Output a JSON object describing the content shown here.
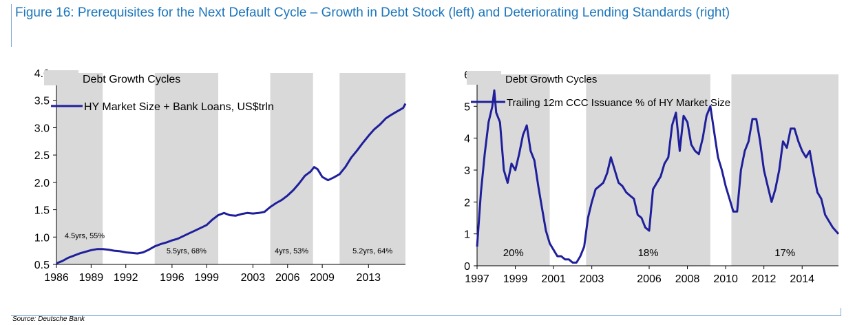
{
  "title": "Figure 16: Prerequisites for the Next Default Cycle – Growth in Debt Stock (left) and Deteriorating Lending Standards (right)",
  "source": "Source: Deutsche Bank",
  "colors": {
    "title": "#1b75bb",
    "line": "#1f1f9c",
    "shade": "#d9d9d9",
    "frame": "#7fa8d6"
  },
  "chart_data": [
    {
      "type": "area",
      "legend": [
        "Debt Growth Cycles",
        "HY Market Size + Bank Loans, US$trln"
      ],
      "legend_position": "top-left",
      "grid": false,
      "xlim": [
        1986,
        2016.2
      ],
      "ylim": [
        0.5,
        4.0
      ],
      "yticks": [
        0.5,
        1.0,
        1.5,
        2.0,
        2.5,
        3.0,
        3.5,
        4.0
      ],
      "ytick_labels": [
        "0.5",
        "1.0",
        "1.5",
        "2.0",
        "2.5",
        "3.0",
        "3.5",
        "4.0"
      ],
      "xticks": [
        1986,
        1989,
        1992,
        1996,
        1999,
        2003,
        2006,
        2009,
        2013
      ],
      "cycles": [
        {
          "start": 1986.0,
          "end": 1990.0,
          "label": "4.5yrs, 55%"
        },
        {
          "start": 1994.5,
          "end": 2000.0,
          "label": "5.5yrs, 68%"
        },
        {
          "start": 2004.5,
          "end": 2008.2,
          "label": "4yrs, 53%"
        },
        {
          "start": 2010.5,
          "end": 2016.2,
          "label": "5.2yrs, 64%"
        }
      ],
      "series": [
        {
          "name": "HY Market Size + Bank Loans, US$trln",
          "x": [
            1986.0,
            1986.5,
            1987.0,
            1987.5,
            1988.0,
            1988.5,
            1989.0,
            1989.5,
            1990.0,
            1990.5,
            1991.0,
            1991.5,
            1992.0,
            1992.5,
            1993.0,
            1993.5,
            1994.0,
            1994.5,
            1995.0,
            1995.5,
            1996.0,
            1996.5,
            1997.0,
            1997.5,
            1998.0,
            1998.5,
            1999.0,
            1999.5,
            2000.0,
            2000.5,
            2001.0,
            2001.5,
            2002.0,
            2002.5,
            2003.0,
            2003.5,
            2004.0,
            2004.5,
            2005.0,
            2005.5,
            2006.0,
            2006.5,
            2007.0,
            2007.5,
            2008.0,
            2008.3,
            2008.6,
            2009.0,
            2009.5,
            2010.0,
            2010.5,
            2011.0,
            2011.5,
            2012.0,
            2012.5,
            2013.0,
            2013.5,
            2014.0,
            2014.5,
            2015.0,
            2015.5,
            2016.0,
            2016.2
          ],
          "y": [
            0.52,
            0.56,
            0.62,
            0.66,
            0.7,
            0.73,
            0.76,
            0.78,
            0.78,
            0.77,
            0.75,
            0.74,
            0.72,
            0.71,
            0.7,
            0.72,
            0.77,
            0.83,
            0.87,
            0.9,
            0.94,
            0.97,
            1.02,
            1.07,
            1.12,
            1.17,
            1.22,
            1.32,
            1.4,
            1.44,
            1.4,
            1.39,
            1.42,
            1.44,
            1.43,
            1.44,
            1.46,
            1.55,
            1.62,
            1.68,
            1.76,
            1.86,
            1.98,
            2.12,
            2.2,
            2.28,
            2.24,
            2.1,
            2.04,
            2.09,
            2.15,
            2.28,
            2.45,
            2.58,
            2.72,
            2.85,
            2.97,
            3.06,
            3.17,
            3.24,
            3.3,
            3.36,
            3.44
          ]
        }
      ]
    },
    {
      "type": "area",
      "legend": [
        "Debt Growth Cycles",
        "Trailing 12m CCC Issuance % of HY Market Size"
      ],
      "legend_position": "top-left",
      "grid": false,
      "xlim": [
        1997,
        2015.9
      ],
      "ylim": [
        0,
        6
      ],
      "yticks": [
        0,
        1,
        2,
        3,
        4,
        5,
        6
      ],
      "ytick_labels": [
        "0",
        "1",
        "2",
        "3",
        "4",
        "5",
        "6"
      ],
      "xticks": [
        1997,
        1999,
        2001,
        2003,
        2006,
        2008,
        2010,
        2012,
        2014
      ],
      "cycles": [
        {
          "start": 1997.0,
          "end": 2000.8,
          "label": "20%"
        },
        {
          "start": 2002.7,
          "end": 2009.2,
          "label": "18%"
        },
        {
          "start": 2010.3,
          "end": 2015.9,
          "label": "17%"
        }
      ],
      "series": [
        {
          "name": "Trailing 12m CCC Issuance % of HY Market Size",
          "x": [
            1997.0,
            1997.2,
            1997.4,
            1997.6,
            1997.8,
            1997.9,
            1998.0,
            1998.2,
            1998.4,
            1998.6,
            1998.8,
            1999.0,
            1999.2,
            1999.4,
            1999.6,
            1999.8,
            2000.0,
            2000.2,
            2000.4,
            2000.6,
            2000.8,
            2001.0,
            2001.2,
            2001.4,
            2001.6,
            2001.8,
            2002.0,
            2002.2,
            2002.4,
            2002.6,
            2002.8,
            2003.0,
            2003.2,
            2003.4,
            2003.6,
            2003.8,
            2004.0,
            2004.2,
            2004.4,
            2004.6,
            2004.8,
            2005.0,
            2005.2,
            2005.4,
            2005.6,
            2005.8,
            2006.0,
            2006.2,
            2006.4,
            2006.6,
            2006.8,
            2007.0,
            2007.2,
            2007.4,
            2007.6,
            2007.8,
            2008.0,
            2008.2,
            2008.4,
            2008.6,
            2008.8,
            2009.0,
            2009.2,
            2009.4,
            2009.6,
            2009.8,
            2010.0,
            2010.2,
            2010.4,
            2010.6,
            2010.8,
            2011.0,
            2011.2,
            2011.4,
            2011.6,
            2011.8,
            2012.0,
            2012.2,
            2012.4,
            2012.6,
            2012.8,
            2013.0,
            2013.2,
            2013.4,
            2013.6,
            2013.8,
            2014.0,
            2014.2,
            2014.4,
            2014.6,
            2014.8,
            2015.0,
            2015.2,
            2015.4,
            2015.6,
            2015.9
          ],
          "y": [
            0.6,
            2.3,
            3.5,
            4.5,
            5.0,
            5.5,
            4.8,
            4.5,
            3.0,
            2.6,
            3.2,
            3.0,
            3.5,
            4.1,
            4.4,
            3.6,
            3.3,
            2.5,
            1.8,
            1.1,
            0.7,
            0.5,
            0.3,
            0.3,
            0.2,
            0.2,
            0.1,
            0.1,
            0.3,
            0.6,
            1.5,
            2.0,
            2.4,
            2.5,
            2.6,
            2.9,
            3.4,
            3.0,
            2.6,
            2.5,
            2.3,
            2.2,
            2.1,
            1.6,
            1.5,
            1.2,
            1.1,
            2.4,
            2.6,
            2.8,
            3.2,
            3.4,
            4.4,
            4.8,
            3.6,
            4.7,
            4.5,
            3.8,
            3.6,
            3.5,
            4.0,
            4.7,
            5.0,
            4.2,
            3.4,
            3.0,
            2.5,
            2.1,
            1.7,
            1.7,
            3.0,
            3.6,
            3.9,
            4.6,
            4.6,
            3.9,
            3.0,
            2.5,
            2.0,
            2.4,
            3.0,
            3.9,
            3.7,
            4.3,
            4.3,
            3.9,
            3.6,
            3.4,
            3.6,
            2.9,
            2.3,
            2.1,
            1.6,
            1.4,
            1.2,
            1.0
          ]
        }
      ]
    }
  ]
}
